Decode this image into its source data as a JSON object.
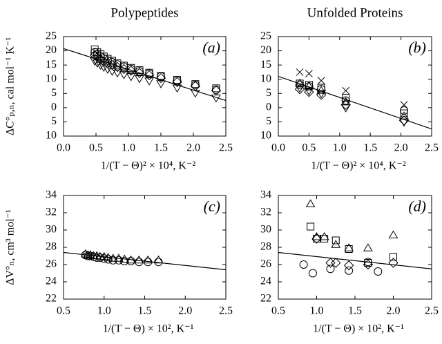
{
  "chart_data": [
    {
      "type": "scatter",
      "title": "Polypeptides",
      "label": "(a)",
      "xlabel": "1/(T − Θ)² × 10⁴, K⁻²",
      "ylabel": "ΔC°ₚ,ₙ, cal mol⁻¹ K⁻¹",
      "xlim": [
        0,
        2.5
      ],
      "ylim": [
        -10,
        25
      ],
      "xticks": [
        {
          "value": 0,
          "label": "0.0"
        },
        0.5,
        {
          "value": 1,
          "label": "1.0"
        },
        1.5,
        {
          "value": 2,
          "label": "2.0"
        },
        2.5
      ],
      "yticks": [
        25,
        20,
        15,
        10,
        5,
        0,
        {
          "value": -5,
          "label": "5"
        },
        {
          "value": -10,
          "label": "10"
        }
      ],
      "color": "#000000",
      "series": [
        {
          "marker": "square",
          "x": [
            0.48,
            0.52,
            0.57,
            0.62,
            0.68,
            0.75,
            0.83,
            0.93,
            1.04,
            1.17,
            1.32,
            1.5,
            1.75,
            2.03,
            2.35
          ],
          "values": [
            20.5,
            19.5,
            18.8,
            18,
            17.2,
            16.5,
            15.6,
            14.8,
            14,
            13.2,
            12.3,
            11.2,
            9.8,
            8.3,
            6.8
          ]
        },
        {
          "marker": "circle",
          "x": [
            0.48,
            0.52,
            0.57,
            0.62,
            0.68,
            0.75,
            0.83,
            0.93,
            1.04,
            1.17,
            1.32,
            1.5,
            1.75,
            2.03,
            2.35
          ],
          "values": [
            19.5,
            18.8,
            18,
            17.3,
            16.6,
            16,
            15.2,
            14.4,
            13.6,
            12.8,
            12,
            11,
            9.5,
            8,
            6.3
          ]
        },
        {
          "marker": "diamond",
          "x": [
            0.48,
            0.52,
            0.57,
            0.62,
            0.68,
            0.75,
            0.83,
            0.93,
            1.04,
            1.17,
            1.32,
            1.5,
            1.75,
            2.03,
            2.35
          ],
          "values": [
            18.5,
            17.8,
            17,
            16.3,
            15.6,
            15,
            14.3,
            13.6,
            13,
            12.2,
            11.4,
            10.4,
            9,
            7.6,
            6
          ]
        },
        {
          "marker": "triangle-down",
          "x": [
            0.48,
            0.52,
            0.57,
            0.62,
            0.68,
            0.75,
            0.83,
            0.93,
            1.04,
            1.17,
            1.32,
            1.5,
            1.75,
            2.03,
            2.35
          ],
          "values": [
            16.5,
            15.8,
            15,
            14.3,
            13.6,
            12.9,
            12.3,
            11.7,
            11,
            10.3,
            9.5,
            8.5,
            7,
            5.2,
            3.5
          ]
        }
      ],
      "fit": {
        "x": [
          0,
          2.5
        ],
        "values": [
          20.8,
          2.5
        ]
      }
    },
    {
      "type": "scatter",
      "title": "Unfolded Proteins",
      "label": "(b)",
      "xlabel": "1/(T − Θ)² × 10⁴, K⁻²",
      "xlim": [
        0,
        2.5
      ],
      "ylim": [
        -10,
        25
      ],
      "xticks": [
        {
          "value": 0,
          "label": "0.0"
        },
        0.5,
        {
          "value": 1,
          "label": "1.0"
        },
        1.5,
        {
          "value": 2,
          "label": "2.0"
        },
        2.5
      ],
      "yticks": [
        25,
        20,
        15,
        10,
        5,
        0,
        {
          "value": -5,
          "label": "5"
        },
        {
          "value": -10,
          "label": "10"
        }
      ],
      "color": "#000000",
      "series": [
        {
          "marker": "cross",
          "x": [
            0.35,
            0.5,
            0.7,
            1.1,
            2.05
          ],
          "values": [
            12.5,
            12,
            9.5,
            6,
            1
          ]
        },
        {
          "marker": "square",
          "x": [
            0.35,
            0.5,
            0.7,
            1.1,
            2.05
          ],
          "values": [
            8.5,
            8,
            7,
            3.5,
            -2
          ]
        },
        {
          "marker": "circle",
          "x": [
            0.35,
            0.5,
            0.7,
            1.1,
            2.05
          ],
          "values": [
            8,
            7.5,
            6.5,
            2.5,
            -1
          ]
        },
        {
          "marker": "diamond",
          "x": [
            0.35,
            0.5,
            0.7,
            1.1,
            2.05
          ],
          "values": [
            6.5,
            5.5,
            4.5,
            1,
            -4.5
          ]
        },
        {
          "marker": "triangle-up",
          "x": [
            0.35,
            0.5,
            0.7,
            1.1,
            2.05
          ],
          "values": [
            8.5,
            7.5,
            6,
            2,
            -3
          ]
        },
        {
          "marker": "triangle-down",
          "x": [
            0.35,
            0.5,
            0.7,
            1.1,
            2.05
          ],
          "values": [
            7,
            6,
            5,
            0,
            -5
          ]
        }
      ],
      "fit": {
        "x": [
          0,
          2.5
        ],
        "values": [
          11,
          -7.5
        ]
      }
    },
    {
      "type": "scatter",
      "label": "(c)",
      "xlabel": "1/(T − Θ) × 10², K⁻¹",
      "ylabel": "ΔV°ₙ, cm³ mol⁻¹",
      "xlim": [
        0.5,
        2.5
      ],
      "ylim": [
        22,
        34
      ],
      "xticks": [
        0.5,
        {
          "value": 1,
          "label": "1.0"
        },
        1.5,
        {
          "value": 2,
          "label": "2.0"
        },
        2.5
      ],
      "yticks": [
        34,
        32,
        30,
        28,
        26,
        24,
        22
      ],
      "color": "#000000",
      "series": [
        {
          "marker": "triangle-up",
          "x": [
            0.77,
            0.8,
            0.83,
            0.87,
            0.91,
            0.95,
            1.0,
            1.05,
            1.11,
            1.18,
            1.25,
            1.33,
            1.43,
            1.54,
            1.67
          ],
          "values": [
            27.2,
            27.1,
            27.1,
            27,
            27,
            26.9,
            26.9,
            26.8,
            26.7,
            26.7,
            26.6,
            26.5,
            26.5,
            26.5,
            26.5
          ]
        },
        {
          "marker": "circle",
          "x": [
            0.77,
            0.8,
            0.83,
            0.87,
            0.91,
            0.95,
            1.0,
            1.05,
            1.11,
            1.18,
            1.25,
            1.33,
            1.43,
            1.54,
            1.67
          ],
          "values": [
            27.1,
            27,
            27,
            26.9,
            26.8,
            26.8,
            26.7,
            26.6,
            26.5,
            26.5,
            26.4,
            26.4,
            26.3,
            26.3,
            26.3
          ]
        }
      ],
      "fit": {
        "x": [
          0.5,
          2.5
        ],
        "values": [
          27.4,
          25.4
        ]
      }
    },
    {
      "type": "scatter",
      "label": "(d)",
      "xlabel": "1/(T − Θ) × 10², K⁻¹",
      "xlim": [
        0.5,
        2.5
      ],
      "ylim": [
        22,
        34
      ],
      "xticks": [
        0.5,
        {
          "value": 1,
          "label": "1.0"
        },
        1.5,
        {
          "value": 2,
          "label": "2.0"
        },
        2.5
      ],
      "yticks": [
        34,
        32,
        30,
        28,
        26,
        24,
        22
      ],
      "color": "#000000",
      "series": [
        {
          "marker": "triangle-up",
          "x": [
            0.92,
            1.0,
            1.1,
            1.25,
            1.42,
            1.67,
            2.0
          ],
          "values": [
            33,
            29.2,
            29.2,
            28.3,
            27.9,
            27.9,
            29.4
          ]
        },
        {
          "marker": "square",
          "x": [
            0.92,
            1.0,
            1.1,
            1.25,
            1.42,
            1.67,
            2.0
          ],
          "values": [
            30.4,
            29,
            29,
            28.8,
            27.8,
            26.2,
            26.9
          ]
        },
        {
          "marker": "diamond",
          "x": [
            1.0,
            1.18,
            1.25,
            1.42,
            1.67,
            2.0
          ],
          "values": [
            29,
            26.2,
            26.2,
            25.9,
            26,
            26.2
          ]
        },
        {
          "marker": "circle",
          "x": [
            0.83,
            0.95,
            1.18,
            1.42,
            1.67,
            1.8
          ],
          "values": [
            26,
            25,
            25.5,
            25.3,
            26.3,
            25.2
          ]
        }
      ],
      "fit": {
        "x": [
          0.5,
          2.5
        ],
        "values": [
          27.4,
          25.5
        ]
      }
    }
  ]
}
